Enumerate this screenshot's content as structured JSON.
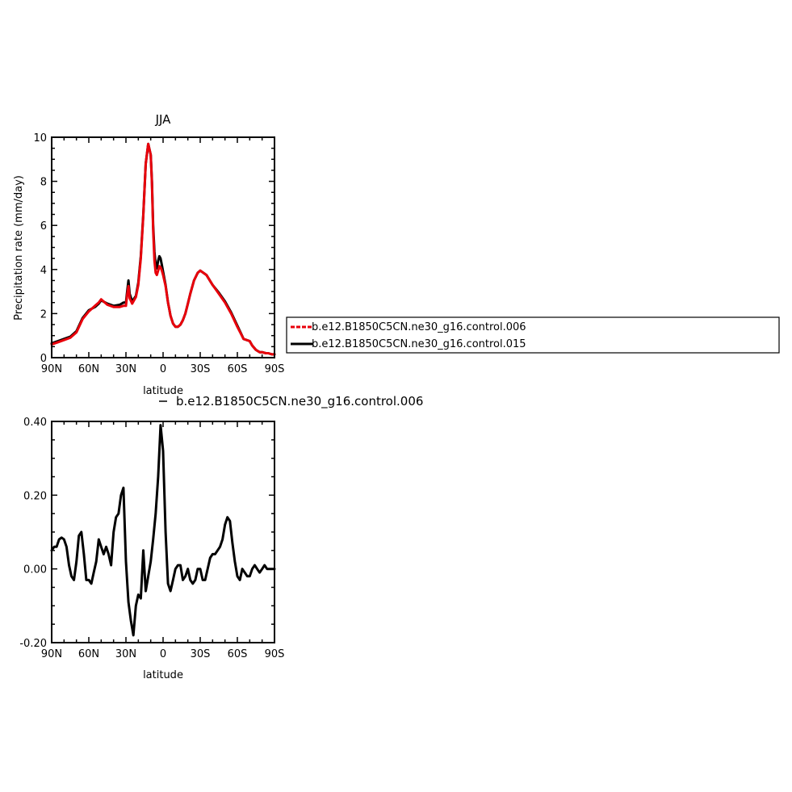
{
  "chart_data": [
    {
      "type": "line",
      "title": "JJA",
      "xlabel": "latitude",
      "ylabel": "Precipitation rate (mm/day)",
      "xlim": [
        90,
        -90
      ],
      "ylim": [
        0,
        10
      ],
      "x_ticks": [
        {
          "value": 90,
          "label": "90N"
        },
        {
          "value": 60,
          "label": "60N"
        },
        {
          "value": 30,
          "label": "30N"
        },
        {
          "value": 0,
          "label": "0"
        },
        {
          "value": -30,
          "label": "30S"
        },
        {
          "value": -60,
          "label": "60S"
        },
        {
          "value": -90,
          "label": "90S"
        }
      ],
      "y_ticks": [
        {
          "value": 0,
          "label": "0"
        },
        {
          "value": 2,
          "label": "2"
        },
        {
          "value": 4,
          "label": "4"
        },
        {
          "value": 6,
          "label": "6"
        },
        {
          "value": 8,
          "label": "8"
        },
        {
          "value": 10,
          "label": "10"
        }
      ],
      "legend_position": "right",
      "series": [
        {
          "name": "b.e12.B1850C5CN.ne30_g16.control.015",
          "color": "#000000",
          "x": [
            90,
            85,
            80,
            75,
            70,
            65,
            60,
            55,
            52,
            50,
            45,
            40,
            35,
            32,
            30,
            29,
            28,
            27,
            25,
            22,
            20,
            18,
            16,
            14,
            12,
            10,
            9,
            8,
            7,
            6,
            5,
            4,
            3,
            2,
            1,
            0,
            -2,
            -4,
            -5,
            -6,
            -8,
            -10,
            -12,
            -14,
            -16,
            -18,
            -20,
            -22,
            -25,
            -28,
            -30,
            -35,
            -40,
            -45,
            -50,
            -55,
            -60,
            -65,
            -70,
            -72,
            -75,
            -78,
            -80,
            -83,
            -85,
            -88,
            -90
          ],
          "y": [
            0.65,
            0.75,
            0.85,
            0.95,
            1.2,
            1.8,
            2.15,
            2.3,
            2.45,
            2.6,
            2.45,
            2.35,
            2.4,
            2.5,
            2.5,
            3.0,
            3.5,
            2.9,
            2.55,
            2.8,
            3.4,
            4.6,
            6.5,
            8.8,
            9.7,
            9.2,
            8.0,
            6.0,
            4.8,
            4.2,
            4.05,
            4.4,
            4.6,
            4.5,
            4.2,
            3.9,
            3.3,
            2.5,
            2.2,
            1.9,
            1.55,
            1.4,
            1.4,
            1.5,
            1.7,
            2.0,
            2.45,
            2.9,
            3.5,
            3.85,
            3.95,
            3.75,
            3.3,
            2.95,
            2.55,
            2.05,
            1.45,
            0.85,
            0.75,
            0.55,
            0.35,
            0.25,
            0.25,
            0.2,
            0.2,
            0.15,
            0.15
          ]
        },
        {
          "name": "b.e12.B1850C5CN.ne30_g16.control.006",
          "color": "#e8000b",
          "x": [
            90,
            85,
            80,
            75,
            70,
            65,
            60,
            55,
            52,
            50,
            45,
            40,
            35,
            32,
            30,
            29,
            28,
            27,
            25,
            22,
            20,
            18,
            16,
            14,
            12,
            10,
            9,
            8,
            7,
            6,
            5,
            4,
            3,
            2,
            1,
            0,
            -2,
            -4,
            -5,
            -6,
            -8,
            -10,
            -12,
            -14,
            -16,
            -18,
            -20,
            -22,
            -25,
            -28,
            -30,
            -35,
            -40,
            -45,
            -50,
            -55,
            -60,
            -65,
            -70,
            -72,
            -75,
            -78,
            -80,
            -83,
            -85,
            -88,
            -90
          ],
          "y": [
            0.6,
            0.7,
            0.8,
            0.9,
            1.15,
            1.75,
            2.1,
            2.35,
            2.5,
            2.65,
            2.4,
            2.3,
            2.3,
            2.35,
            2.35,
            2.85,
            3.25,
            2.7,
            2.45,
            2.75,
            3.3,
            4.5,
            6.45,
            8.8,
            9.7,
            9.2,
            7.9,
            5.8,
            4.4,
            3.85,
            3.75,
            3.95,
            4.15,
            4.1,
            3.95,
            3.75,
            3.25,
            2.5,
            2.2,
            1.9,
            1.55,
            1.4,
            1.4,
            1.5,
            1.7,
            2.0,
            2.45,
            2.9,
            3.5,
            3.85,
            3.95,
            3.75,
            3.3,
            2.9,
            2.5,
            2.0,
            1.4,
            0.85,
            0.75,
            0.55,
            0.35,
            0.25,
            0.25,
            0.2,
            0.2,
            0.15,
            0.15
          ]
        }
      ]
    },
    {
      "type": "line",
      "title": "",
      "subtitle": "b.e12.B1850C5CN.ne30_g16.control.006",
      "xlabel": "latitude",
      "ylabel": "",
      "xlim": [
        90,
        -90
      ],
      "ylim": [
        -0.2,
        0.4
      ],
      "x_ticks": [
        {
          "value": 90,
          "label": "90N"
        },
        {
          "value": 60,
          "label": "60N"
        },
        {
          "value": 30,
          "label": "30N"
        },
        {
          "value": 0,
          "label": "0"
        },
        {
          "value": -30,
          "label": "30S"
        },
        {
          "value": -60,
          "label": "60S"
        },
        {
          "value": -90,
          "label": "90S"
        }
      ],
      "y_ticks": [
        {
          "value": -0.2,
          "label": "-0.20"
        },
        {
          "value": 0,
          "label": "0.00"
        },
        {
          "value": 0.2,
          "label": "0.20"
        },
        {
          "value": 0.4,
          "label": "0.40"
        }
      ],
      "series": [
        {
          "color": "#000000",
          "x": [
            90,
            88,
            86,
            84,
            82,
            80,
            78,
            76,
            74,
            72,
            70,
            68,
            66,
            64,
            62,
            60,
            58,
            56,
            54,
            52,
            50,
            48,
            46,
            44,
            42,
            40,
            38,
            36,
            34,
            32,
            30,
            28,
            26,
            24,
            22,
            20,
            18,
            16,
            14,
            12,
            10,
            8,
            6,
            4,
            2,
            0,
            -2,
            -4,
            -6,
            -8,
            -10,
            -12,
            -14,
            -16,
            -18,
            -20,
            -22,
            -24,
            -26,
            -28,
            -30,
            -32,
            -34,
            -36,
            -38,
            -40,
            -42,
            -44,
            -46,
            -48,
            -50,
            -52,
            -54,
            -56,
            -58,
            -60,
            -62,
            -64,
            -66,
            -68,
            -70,
            -72,
            -74,
            -76,
            -78,
            -80,
            -82,
            -84,
            -86,
            -88,
            -90
          ],
          "y": [
            0.05,
            0.06,
            0.06,
            0.08,
            0.085,
            0.08,
            0.06,
            0.01,
            -0.02,
            -0.03,
            0.02,
            0.09,
            0.1,
            0.04,
            -0.03,
            -0.03,
            -0.04,
            -0.01,
            0.02,
            0.08,
            0.06,
            0.04,
            0.06,
            0.04,
            0.01,
            0.1,
            0.14,
            0.15,
            0.2,
            0.22,
            0.02,
            -0.09,
            -0.14,
            -0.18,
            -0.1,
            -0.07,
            -0.08,
            0.05,
            -0.06,
            -0.02,
            0.02,
            0.08,
            0.15,
            0.25,
            0.39,
            0.32,
            0.1,
            -0.04,
            -0.06,
            -0.03,
            0.0,
            0.01,
            0.01,
            -0.03,
            -0.02,
            0.0,
            -0.03,
            -0.04,
            -0.03,
            0.0,
            0.0,
            -0.03,
            -0.03,
            0.0,
            0.03,
            0.04,
            0.04,
            0.05,
            0.06,
            0.08,
            0.12,
            0.14,
            0.13,
            0.07,
            0.02,
            -0.02,
            -0.03,
            0.0,
            -0.01,
            -0.02,
            -0.02,
            0.0,
            0.01,
            0.0,
            -0.01,
            0.0,
            0.01,
            0.0,
            0.0,
            0.0,
            0.0
          ]
        }
      ]
    }
  ]
}
